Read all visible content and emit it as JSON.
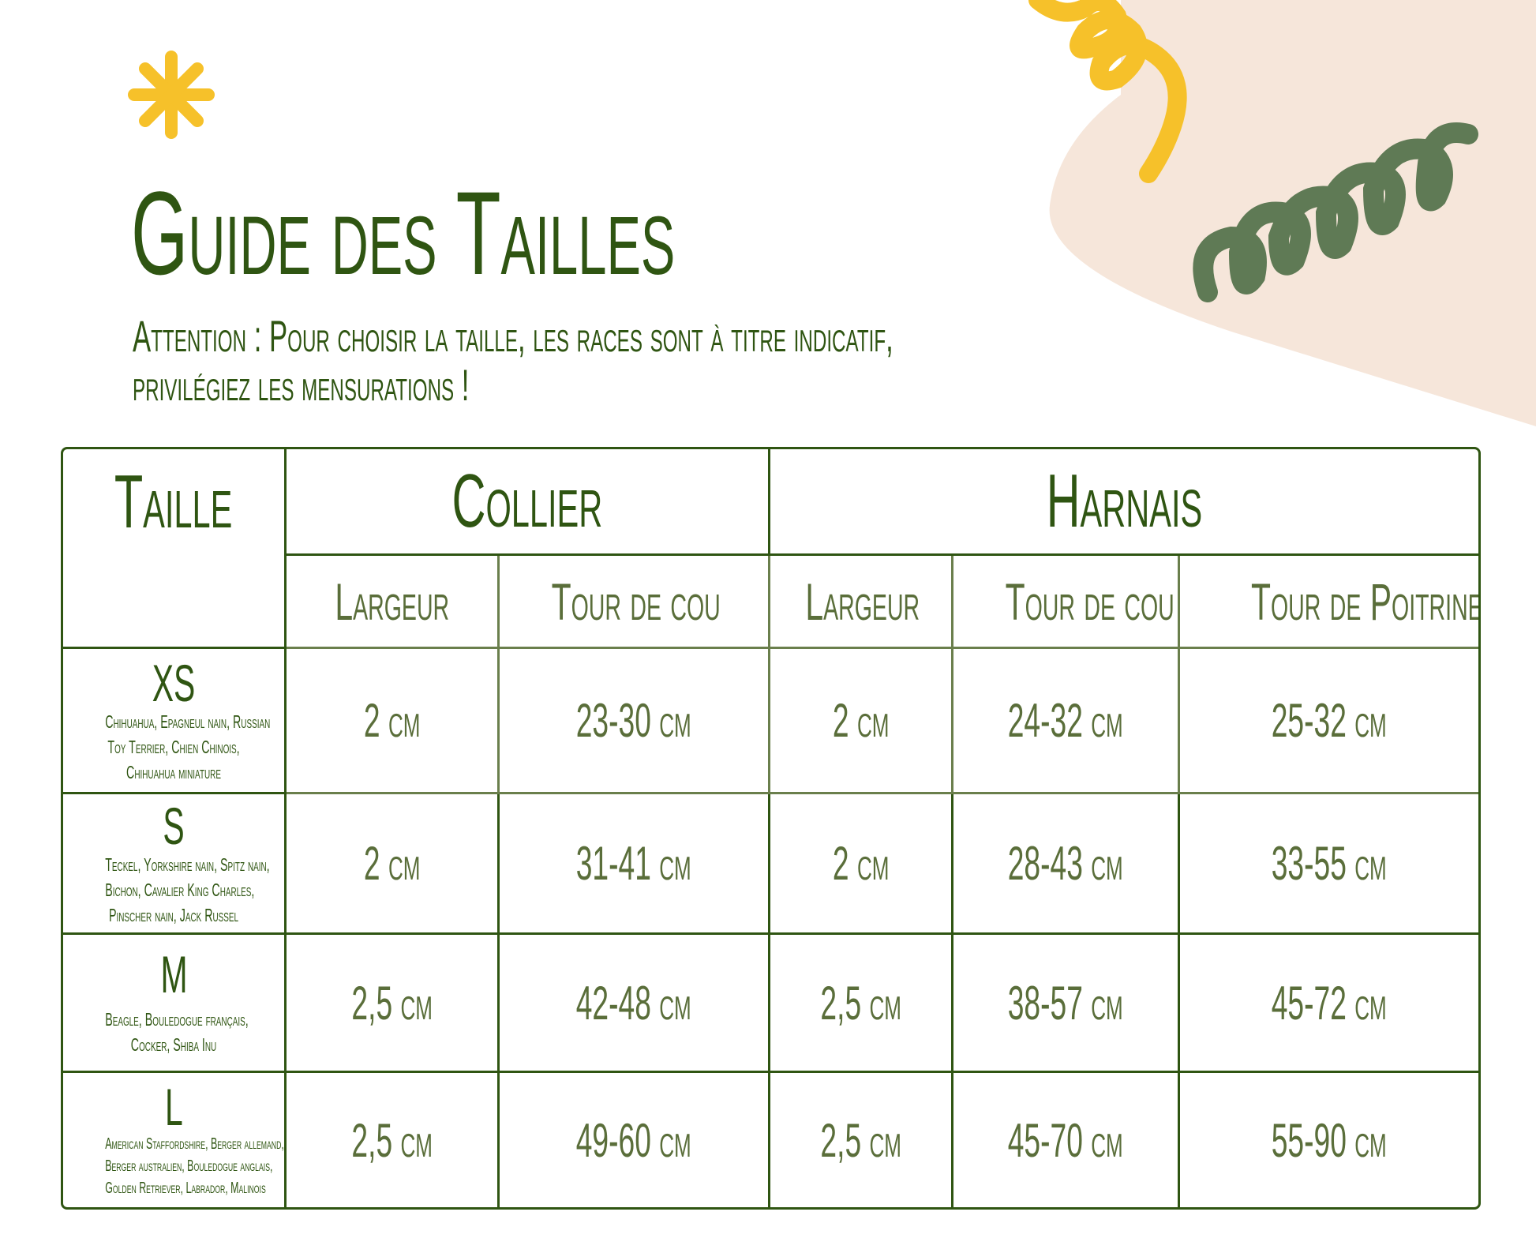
{
  "title": "Guide des Tailles",
  "subtitle": [
    "Attention : Pour choisir la taille, les races sont à titre indicatif,",
    "privilégiez les mensurations !"
  ],
  "table": {
    "col_taille": "Taille",
    "group_collier": "Collier",
    "group_harnais": "Harnais",
    "sub_headers": [
      "Largeur",
      "Tour de cou",
      "Largeur",
      "Tour de cou",
      "Tour de Poitrine"
    ],
    "rows": [
      {
        "size": "XS",
        "breeds": [
          "Chihuahua, Epagneul nain, Russian",
          "Toy Terrier, Chien Chinois,",
          "Chihuahua miniature"
        ],
        "values": [
          "2 cm",
          "23-30 cm",
          "2 cm",
          "24-32 cm",
          "25-32 cm"
        ]
      },
      {
        "size": "S",
        "breeds": [
          "Teckel, Yorkshire nain, Spitz nain,",
          "Bichon, Cavalier King Charles,",
          "Pinscher nain, Jack Russel"
        ],
        "values": [
          "2 cm",
          "31-41 cm",
          "2 cm",
          "28-43 cm",
          "33-55 cm"
        ]
      },
      {
        "size": "M",
        "breeds": [
          "Beagle, Bouledogue français,",
          "Cocker, Shiba Inu"
        ],
        "values": [
          "2,5 cm",
          "42-48 cm",
          "2,5 cm",
          "38-57 cm",
          "45-72 cm"
        ]
      },
      {
        "size": "L",
        "breeds": [
          "American Staffordshire, Berger allemand,",
          "Berger australien, Bouledogue anglais,",
          "Golden Retriever, Labrador, Malinois"
        ],
        "values": [
          "2,5 cm",
          "49-60 cm",
          "2,5 cm",
          "45-70 cm",
          "55-90 cm"
        ]
      }
    ]
  },
  "colors": {
    "primary_green": "#2f5512",
    "muted_green": "#5a6e3a",
    "accent_yellow": "#f6c12a",
    "spiral_green": "#5f7a55",
    "peach": "#f6e6da"
  }
}
